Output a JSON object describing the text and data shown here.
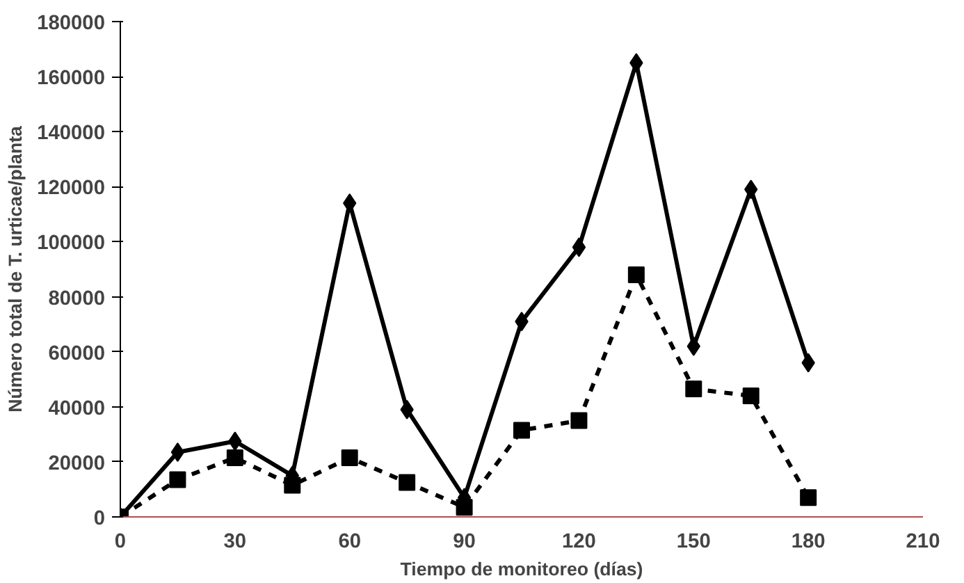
{
  "chart_data": {
    "type": "line",
    "xlabel": "Tiempo de monitoreo (días)",
    "ylabel": "Número total de T. urticae/planta",
    "x": [
      0,
      15,
      30,
      45,
      60,
      75,
      90,
      105,
      120,
      135,
      150,
      165,
      180
    ],
    "series": [
      {
        "color": "#000000",
        "marker": "diamond",
        "line_style": "solid",
        "values": [
          0,
          23500,
          27500,
          15000,
          114000,
          39000,
          7000,
          71000,
          98000,
          165000,
          62000,
          119000,
          56000
        ]
      },
      {
        "color": "#000000",
        "marker": "square",
        "line_style": "dashed",
        "values": [
          0,
          13500,
          21500,
          11500,
          21500,
          12500,
          3500,
          31500,
          35000,
          88000,
          46500,
          44000,
          7000
        ]
      }
    ],
    "xlim": [
      0,
      210
    ],
    "xticks": [
      0,
      30,
      60,
      90,
      120,
      150,
      180,
      210
    ],
    "ylim": [
      0,
      180000
    ],
    "yticks": [
      0,
      20000,
      40000,
      60000,
      80000,
      100000,
      120000,
      140000,
      160000,
      180000
    ],
    "grid": false
  }
}
